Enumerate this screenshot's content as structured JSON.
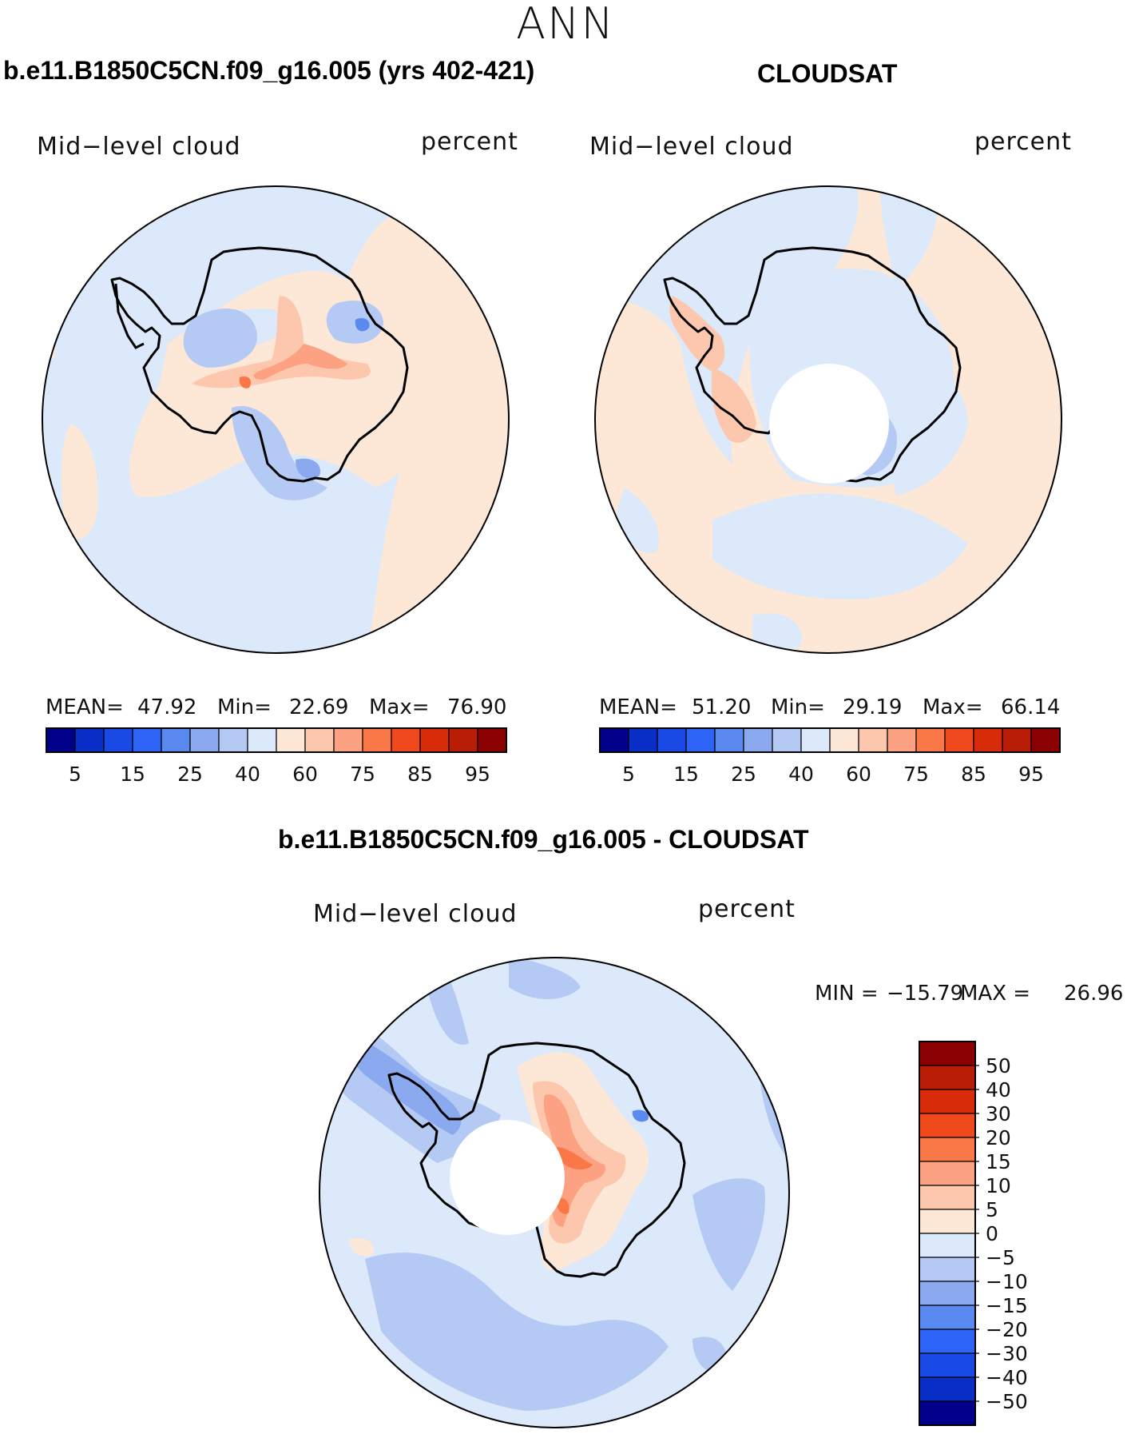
{
  "season": "ANN",
  "panels": {
    "model": {
      "title": "b.e11.B1850C5CN.f09_g16.005 (yrs 402-421)",
      "field_label": "Mid−level cloud",
      "units_label": "percent",
      "stats": {
        "mean_label": "MEAN=",
        "mean_value": "47.92",
        "min_label": "Min=",
        "min_value": "22.69",
        "max_label": "Max=",
        "max_value": "76.90"
      }
    },
    "obs": {
      "title": "CLOUDSAT",
      "field_label": "Mid−level cloud",
      "units_label": "percent",
      "stats": {
        "mean_label": "MEAN=",
        "mean_value": "51.20",
        "min_label": "Min=",
        "min_value": "29.19",
        "max_label": "Max=",
        "max_value": "66.14"
      }
    },
    "diff": {
      "title": "b.e11.B1850C5CN.f09_g16.005 - CLOUDSAT",
      "field_label": "Mid−level cloud",
      "units_label": "percent",
      "stats": {
        "min_label": "MIN =",
        "min_value": "−15.79",
        "max_label": "MAX =",
        "max_value": "26.96"
      }
    }
  },
  "colorbars": {
    "abs": {
      "colors": [
        "#00008b",
        "#0a2fc6",
        "#1a4ae6",
        "#2e64f5",
        "#5a89f0",
        "#8aa9ee",
        "#b4c9f3",
        "#dbe9fa",
        "#fde8d7",
        "#fdc7ae",
        "#fca283",
        "#fa7748",
        "#f0491d",
        "#d82b0a",
        "#b81d06",
        "#8b0000"
      ],
      "tick_labels": [
        "5",
        "15",
        "25",
        "40",
        "60",
        "75",
        "85",
        "95"
      ]
    },
    "diff": {
      "colors": [
        "#8b0000",
        "#b81d06",
        "#d82b0a",
        "#f0491d",
        "#fa7748",
        "#fca283",
        "#fdc7ae",
        "#fde8d7",
        "#dbe9fa",
        "#b4c9f3",
        "#8aa9ee",
        "#5a89f0",
        "#2e64f5",
        "#1a4ae6",
        "#0a2fc6",
        "#00008b"
      ],
      "tick_labels": [
        "50",
        "40",
        "30",
        "20",
        "15",
        "10",
        "5",
        "0",
        "−5",
        "−10",
        "−15",
        "−20",
        "−30",
        "−40",
        "−50"
      ]
    }
  },
  "fill_colors": {
    "blue_light": "#dbe9fa",
    "blue_mid": "#b4c9f3",
    "blue_deep": "#8aa9ee",
    "blue_dark": "#5a89f0",
    "peach": "#fde8d7",
    "salmon": "#fdc7ae",
    "orange": "#fca283",
    "red_orange": "#fa7748",
    "coast": "#000000"
  }
}
